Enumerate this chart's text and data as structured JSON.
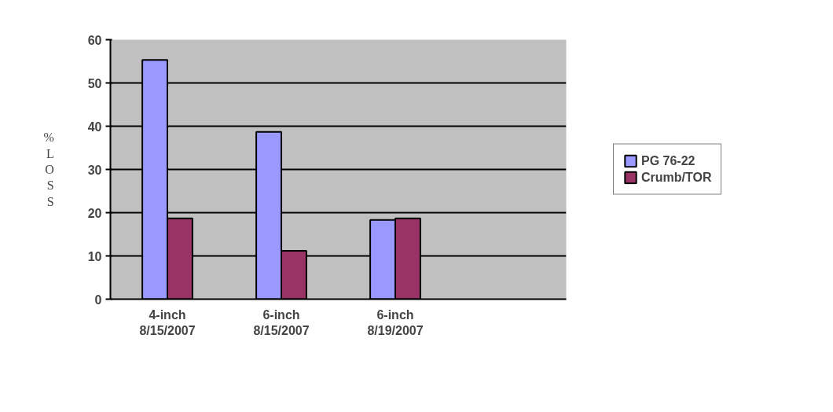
{
  "chart_data": {
    "type": "bar",
    "ylabel": "%LOSS",
    "categories": [
      "4-inch\n8/15/2007",
      "6-inch\n8/15/2007",
      "6-inch\n8/19/2007",
      null
    ],
    "series": [
      {
        "name": "PG 76-22",
        "color": "#9999ff",
        "values": [
          55.3,
          38.7,
          18.3,
          null
        ]
      },
      {
        "name": "Crumb/TOR",
        "color": "#993366",
        "values": [
          18.7,
          11.2,
          18.7,
          null
        ]
      }
    ],
    "ylim": [
      0,
      60
    ],
    "yticks": [
      0,
      10,
      20,
      30,
      40,
      50,
      60
    ],
    "grid": "y",
    "legend": "right"
  }
}
